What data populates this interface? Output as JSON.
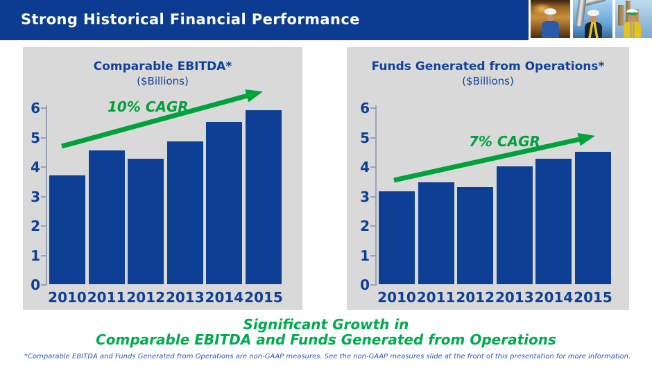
{
  "header": {
    "title": "Strong Historical Financial Performance"
  },
  "photos": [
    {
      "name": "worker-photo-refinery",
      "alt": "worker in hard hat at refinery"
    },
    {
      "name": "worker-photo-pipeline",
      "alt": "worker in hard hat by large pipe"
    },
    {
      "name": "worker-photo-plant",
      "alt": "worker in safety vest at plant"
    }
  ],
  "chart_data": [
    {
      "type": "bar",
      "title": "Comparable EBITDA*",
      "subtitle": "($Billions)",
      "categories": [
        "2010",
        "2011",
        "2012",
        "2013",
        "2014",
        "2015"
      ],
      "values": [
        3.7,
        4.55,
        4.25,
        4.85,
        5.5,
        5.9
      ],
      "annotation": "10% CAGR",
      "xlabel": "",
      "ylabel": "",
      "ylim": [
        0,
        6
      ],
      "yticks": [
        0,
        1,
        2,
        3,
        4,
        5,
        6
      ],
      "grid": false,
      "legend": "none",
      "bar_color": "#0d3f94"
    },
    {
      "type": "bar",
      "title": "Funds Generated from Operations*",
      "subtitle": "($Billions)",
      "categories": [
        "2010",
        "2011",
        "2012",
        "2013",
        "2014",
        "2015"
      ],
      "values": [
        3.15,
        3.45,
        3.3,
        4.0,
        4.25,
        4.5
      ],
      "annotation": "7% CAGR",
      "xlabel": "",
      "ylabel": "",
      "ylim": [
        0,
        6
      ],
      "yticks": [
        0,
        1,
        2,
        3,
        4,
        5,
        6
      ],
      "grid": false,
      "legend": "none",
      "bar_color": "#0d3f94"
    }
  ],
  "summary": {
    "line1": "Significant Growth in",
    "line2": "Comparable EBITDA and Funds Generated from Operations"
  },
  "footnote": "*Comparable EBITDA and Funds Generated from Operations are non-GAAP measures.  See the non-GAAP measures slide at the front of this presentation for more information.",
  "colors": {
    "header_blue": "#0c3c91",
    "bar_blue": "#0d3f94",
    "panel_gray": "#d9d9d9",
    "arrow_green": "#00a23c",
    "summary_green": "#00ab4e",
    "footnote_blue": "#2d53cb",
    "axis_gray": "#99a1b6"
  }
}
